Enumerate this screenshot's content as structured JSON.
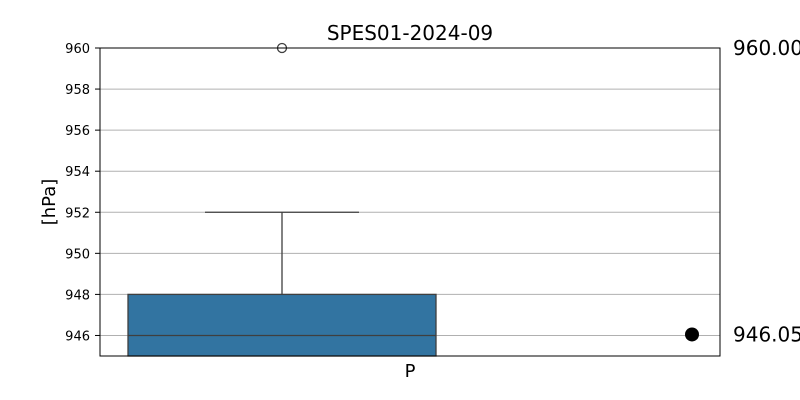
{
  "chart_data": {
    "type": "box",
    "title": "SPES01-2024-09",
    "xlabel": "",
    "ylabel": "[hPa]",
    "categories": [
      "P"
    ],
    "ylim": [
      945,
      960
    ],
    "yticks": [
      946,
      948,
      950,
      952,
      954,
      956,
      958,
      960
    ],
    "ytick_labels": [
      "946",
      "948",
      "950",
      "952",
      "954",
      "956",
      "958",
      "960"
    ],
    "grid": true,
    "box": {
      "name": "P",
      "q1": 945,
      "median": 946,
      "q3": 948,
      "whisker_low": 945,
      "whisker_high": 952,
      "outliers": [
        960
      ],
      "color": "#3274a1"
    },
    "marker": {
      "value": 946.05,
      "color": "#000000"
    },
    "annotations": [
      {
        "text": "960.00",
        "value": 960
      },
      {
        "text": "946.05",
        "value": 946.05
      }
    ]
  }
}
